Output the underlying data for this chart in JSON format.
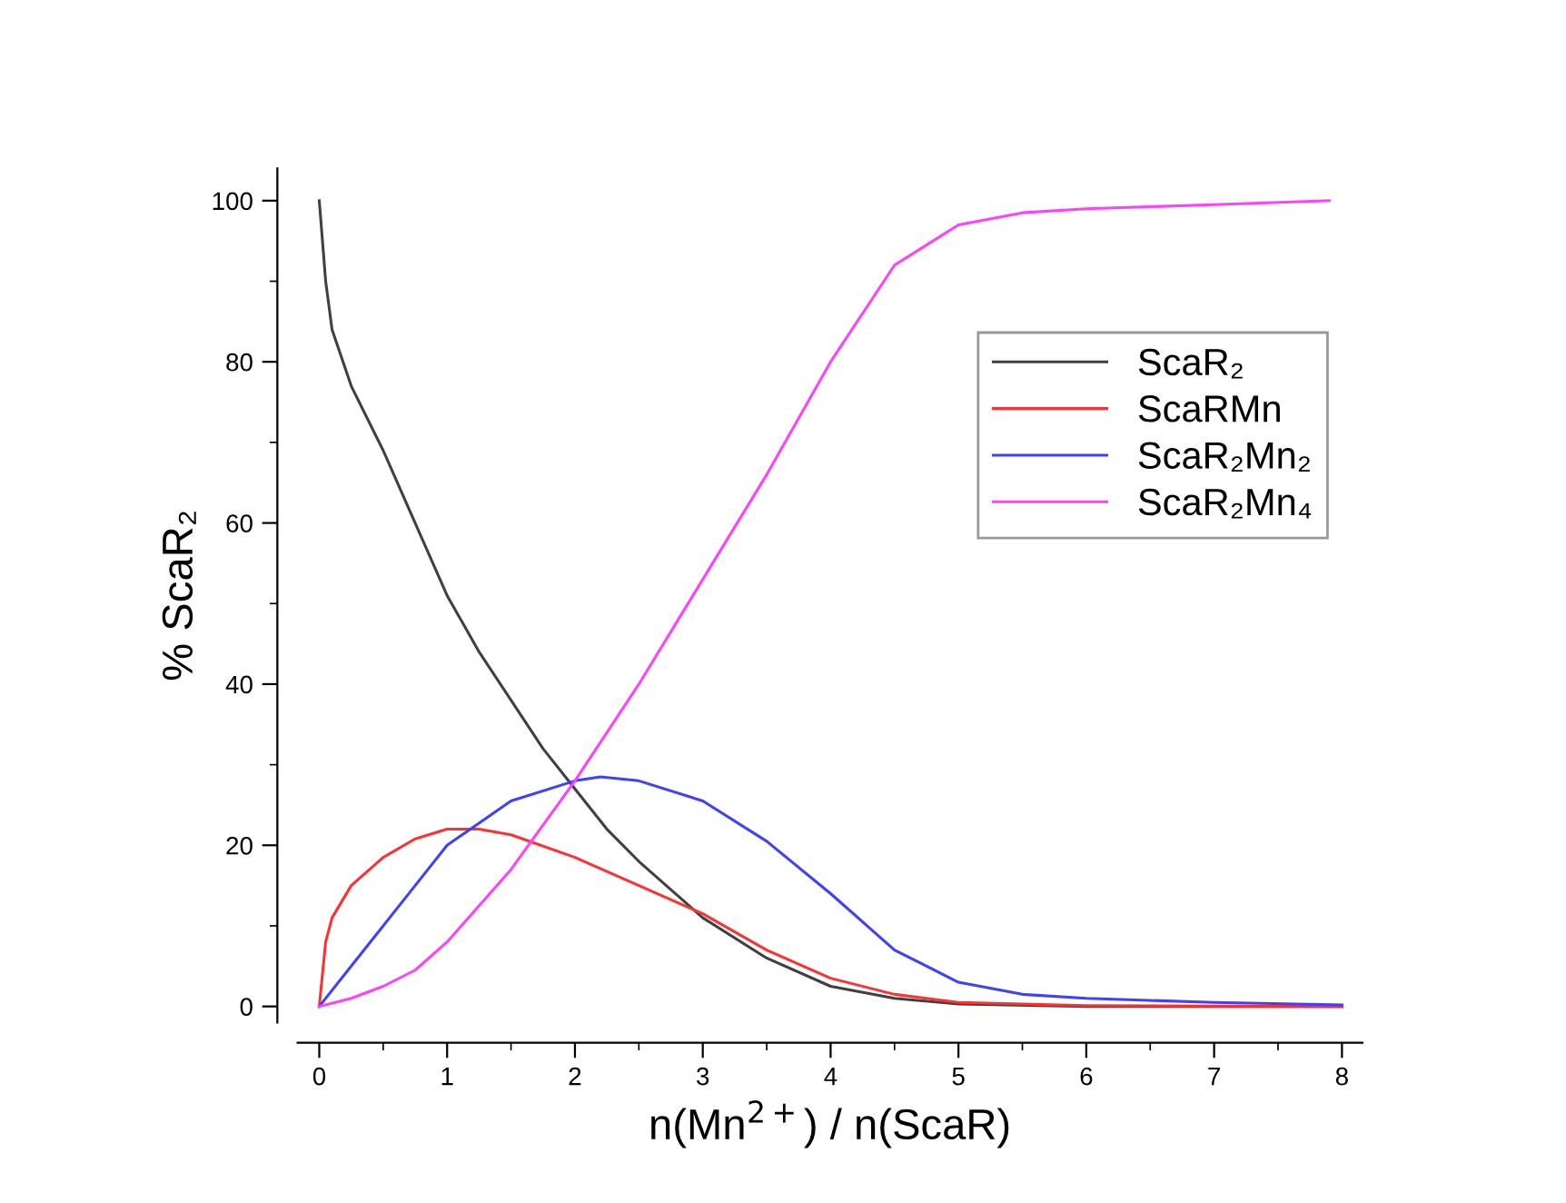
{
  "chart_data": {
    "type": "line",
    "xlabel": "n(Mn$^{2+}$) / n(ScaR)",
    "ylabel": "% ScaR₂",
    "xlim": [
      -0.17,
      8.16
    ],
    "ylim": [
      -2,
      104
    ],
    "xticks": [
      0,
      1,
      2,
      3,
      4,
      5,
      6,
      7,
      8
    ],
    "yticks": [
      0,
      20,
      40,
      60,
      80,
      100
    ],
    "grid": false,
    "legend": "top right",
    "marker": "none",
    "line_style": "solid",
    "series": [
      {
        "name": "ScaR₂",
        "color": "#404040",
        "x": [
          0,
          0.05,
          0.1,
          0.25,
          0.5,
          0.75,
          1,
          1.25,
          1.5,
          1.75,
          2,
          2.25,
          2.5,
          3,
          3.5,
          4,
          4.5,
          5,
          6,
          7,
          8
        ],
        "values": [
          100,
          90,
          84,
          77,
          69,
          60,
          51,
          44,
          38,
          32,
          27,
          22,
          18,
          11,
          6,
          2.5,
          1,
          0.3,
          0,
          0,
          0
        ]
      },
      {
        "name": "ScaRMn",
        "color": "#ff3030",
        "x": [
          0,
          0.05,
          0.1,
          0.25,
          0.5,
          0.75,
          1,
          1.25,
          1.5,
          2,
          2.5,
          3,
          3.5,
          4,
          4.5,
          5,
          6,
          8
        ],
        "values": [
          0,
          8,
          11,
          15,
          18.5,
          20.8,
          22,
          22,
          21.3,
          18.5,
          15,
          11.5,
          7,
          3.5,
          1.5,
          0.5,
          0.1,
          0
        ]
      },
      {
        "name": "ScaR₂Mn₂",
        "color": "#4040ff",
        "x": [
          0,
          0.25,
          0.5,
          0.75,
          1,
          1.5,
          2,
          2.2,
          2.5,
          3,
          3.5,
          4,
          4.5,
          5,
          5.5,
          6,
          7,
          8
        ],
        "values": [
          0,
          5,
          10,
          15,
          20,
          25.5,
          28,
          28.5,
          28,
          25.5,
          20.5,
          14,
          7,
          3,
          1.5,
          1,
          0.5,
          0.2
        ]
      },
      {
        "name": "ScaR₂Mn₄",
        "color": "#ff40ff",
        "x": [
          0,
          0.25,
          0.5,
          0.75,
          1,
          1.5,
          2,
          2.5,
          3,
          3.5,
          4,
          4.5,
          5,
          5.5,
          6,
          7,
          7.9
        ],
        "values": [
          0,
          1,
          2.5,
          4.5,
          8,
          17,
          28,
          40,
          53,
          66,
          80,
          92,
          97,
          98.5,
          99,
          99.5,
          100
        ]
      }
    ]
  }
}
